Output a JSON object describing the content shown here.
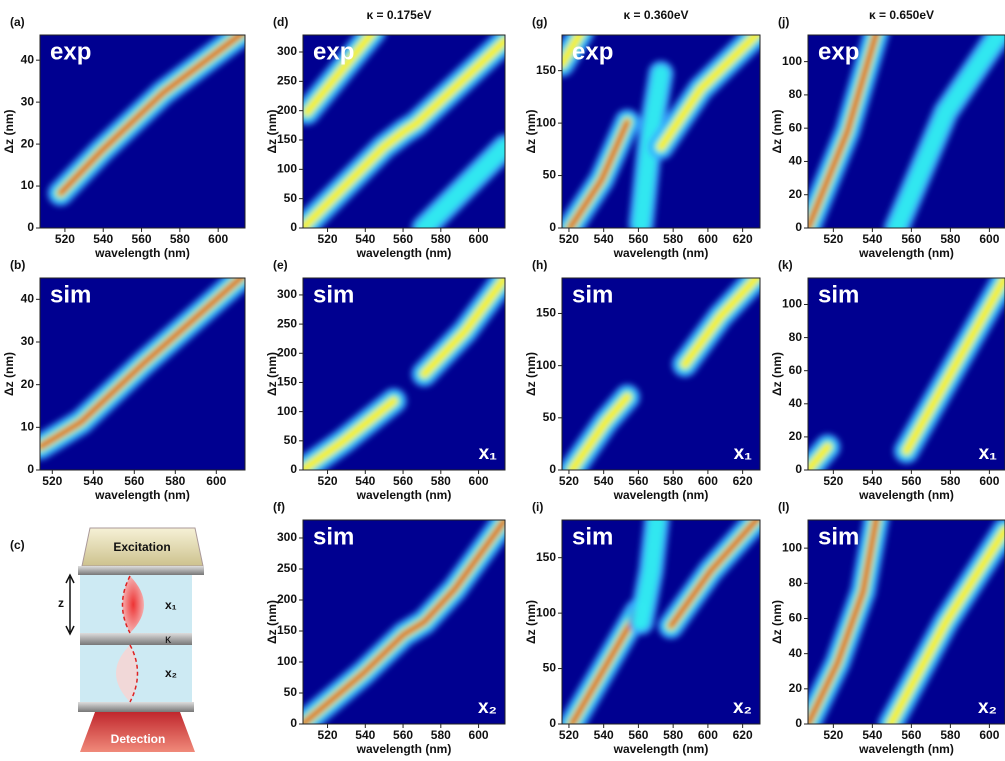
{
  "panels": [
    {
      "label": "(a)",
      "tag": "exp",
      "x_label": "wavelength (nm)",
      "y_label": "Δz (nm)",
      "xlim": [
        507,
        614
      ],
      "ylim": [
        0,
        46
      ],
      "xticks": [
        520,
        540,
        560,
        580,
        600
      ],
      "yticks": [
        0,
        10,
        20,
        30,
        40
      ]
    },
    {
      "label": "(b)",
      "tag": "sim",
      "x_label": "wavelength (nm)",
      "y_label": "Δz (nm)",
      "xlim": [
        514,
        614
      ],
      "ylim": [
        0,
        45
      ],
      "xticks": [
        520,
        540,
        560,
        580,
        600
      ],
      "yticks": [
        0,
        10,
        20,
        30,
        40
      ]
    },
    {
      "label": "(d)",
      "title": "κ = 0.175eV",
      "tag": "exp",
      "x_label": "wavelength (nm)",
      "y_label": "Δz (nm)",
      "xlim": [
        507,
        614
      ],
      "ylim": [
        0,
        329
      ],
      "xticks": [
        520,
        540,
        560,
        580,
        600
      ],
      "yticks": [
        0,
        50,
        100,
        150,
        200,
        250,
        300
      ]
    },
    {
      "label": "(e)",
      "tag": "sim",
      "corner": "x₁",
      "x_label": "wavelength (nm)",
      "y_label": "Δz (nm)",
      "xlim": [
        507,
        614
      ],
      "ylim": [
        0,
        329
      ],
      "xticks": [
        520,
        540,
        560,
        580,
        600
      ],
      "yticks": [
        0,
        50,
        100,
        150,
        200,
        250,
        300
      ]
    },
    {
      "label": "(f)",
      "tag": "sim",
      "corner": "x₂",
      "x_label": "wavelength (nm)",
      "y_label": "Δz (nm)",
      "xlim": [
        507,
        614
      ],
      "ylim": [
        0,
        329
      ],
      "xticks": [
        520,
        540,
        560,
        580,
        600
      ],
      "yticks": [
        0,
        50,
        100,
        150,
        200,
        250,
        300
      ]
    },
    {
      "label": "(g)",
      "title": "κ = 0.360eV",
      "tag": "exp",
      "x_label": "wavelength (nm)",
      "y_label": "Δz (nm)",
      "xlim": [
        516,
        630
      ],
      "ylim": [
        0,
        184
      ],
      "xticks": [
        520,
        540,
        560,
        580,
        600,
        620
      ],
      "yticks": [
        0,
        50,
        100,
        150
      ]
    },
    {
      "label": "(h)",
      "tag": "sim",
      "corner": "x₁",
      "x_label": "wavelength (nm)",
      "y_label": "Δz (nm)",
      "xlim": [
        516,
        630
      ],
      "ylim": [
        0,
        184
      ],
      "xticks": [
        520,
        540,
        560,
        580,
        600,
        620
      ],
      "yticks": [
        0,
        50,
        100,
        150
      ]
    },
    {
      "label": "(i)",
      "tag": "sim",
      "corner": "x₂",
      "x_label": "wavelength (nm)",
      "y_label": "Δz (nm)",
      "xlim": [
        516,
        630
      ],
      "ylim": [
        0,
        184
      ],
      "xticks": [
        520,
        540,
        560,
        580,
        600,
        620
      ],
      "yticks": [
        0,
        50,
        100,
        150
      ]
    },
    {
      "label": "(j)",
      "title": "κ = 0.650eV",
      "tag": "exp",
      "x_label": "wavelength (nm)",
      "y_label": "Δz (nm)",
      "xlim": [
        507,
        608
      ],
      "ylim": [
        0,
        116
      ],
      "xticks": [
        520,
        540,
        560,
        580,
        600
      ],
      "yticks": [
        0,
        20,
        40,
        60,
        80,
        100
      ]
    },
    {
      "label": "(k)",
      "tag": "sim",
      "corner": "x₁",
      "x_label": "wavelength (nm)",
      "y_label": "Δz (nm)",
      "xlim": [
        507,
        608
      ],
      "ylim": [
        0,
        116
      ],
      "xticks": [
        520,
        540,
        560,
        580,
        600
      ],
      "yticks": [
        0,
        20,
        40,
        60,
        80,
        100
      ]
    },
    {
      "label": "(l)",
      "tag": "sim",
      "corner": "x₂",
      "x_label": "wavelength (nm)",
      "y_label": "Δz (nm)",
      "xlim": [
        507,
        608
      ],
      "ylim": [
        0,
        116
      ],
      "xticks": [
        520,
        540,
        560,
        580,
        600
      ],
      "yticks": [
        0,
        20,
        40,
        60,
        80,
        100
      ]
    }
  ],
  "schematic": {
    "label": "(c)",
    "excitation": "Excitation",
    "detection": "Detection",
    "z": "z",
    "x1": "x₁",
    "kappa": "κ",
    "x2": "x₂"
  }
}
